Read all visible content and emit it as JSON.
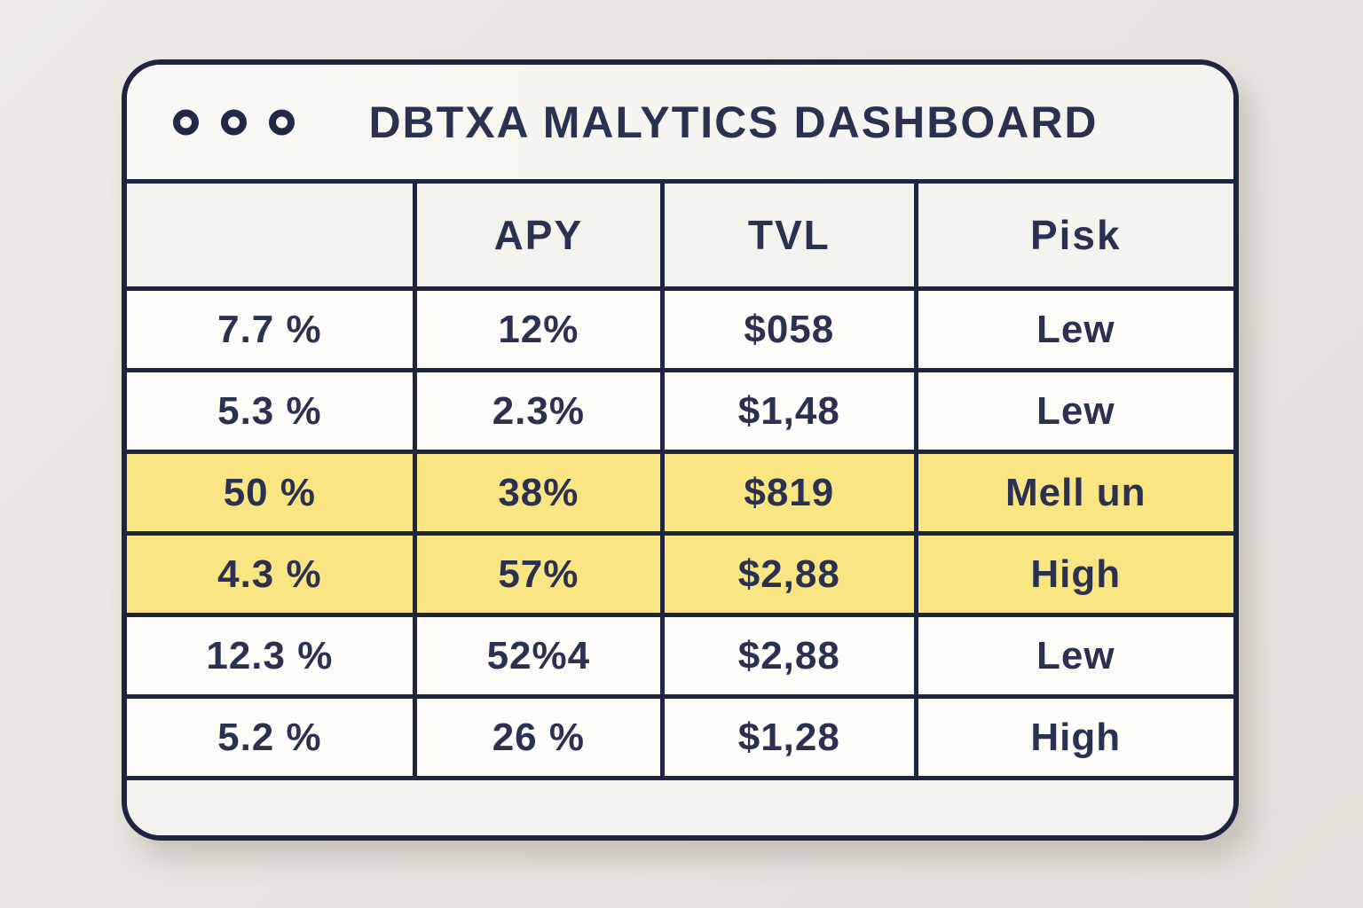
{
  "window": {
    "title": "DBTXA MALYTICS DASHBOARD",
    "controls": {
      "count": 3,
      "icon": "window-control-dot"
    }
  },
  "colors": {
    "border_navy": "#1f253f",
    "text_navy": "#2b3150",
    "highlight_yellow": "#f9e582",
    "window_bg": "#f9f7f3",
    "page_bg": "#e8e4e0"
  },
  "table": {
    "headers": [
      "",
      "APY",
      "TVL",
      "Pisk"
    ],
    "rows": [
      {
        "cells": [
          "7.7 %",
          "12%",
          "$058",
          "Lew"
        ],
        "highlight": false
      },
      {
        "cells": [
          "5.3 %",
          "2.3%",
          "$1,48",
          "Lew"
        ],
        "highlight": false
      },
      {
        "cells": [
          "50 %",
          "38%",
          "$819",
          "Mell un"
        ],
        "highlight": true
      },
      {
        "cells": [
          "4.3 %",
          "57%",
          "$2,88",
          "High"
        ],
        "highlight": true
      },
      {
        "cells": [
          "12.3 %",
          "52%4",
          "$2,88",
          "Lew"
        ],
        "highlight": false
      },
      {
        "cells": [
          "5.2 %",
          "26 %",
          "$1,28",
          "High"
        ],
        "highlight": false
      }
    ]
  }
}
